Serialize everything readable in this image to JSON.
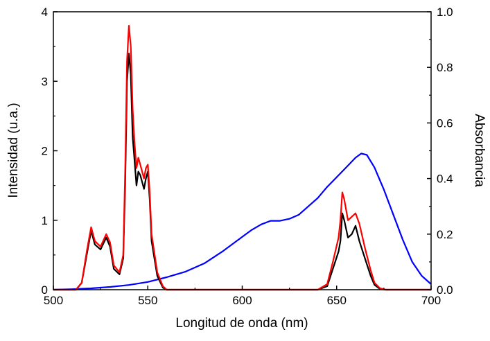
{
  "chart_data": {
    "type": "line",
    "title": "",
    "xlabel": "Longitud de onda (nm)",
    "ylabel_left": "Intensidad (u.a.)",
    "ylabel_right": "Absorbancia",
    "xlim": [
      500,
      700
    ],
    "ylim_left": [
      0,
      4
    ],
    "ylim_right": [
      0,
      1.0
    ],
    "x_ticks": [
      500,
      550,
      600,
      650,
      700
    ],
    "y_left_ticks": [
      0,
      1,
      2,
      3,
      4
    ],
    "y_right_ticks": [
      "0.0",
      "0.2",
      "0.4",
      "0.6",
      "0.8",
      "1.0"
    ],
    "grid": false,
    "legend": "none",
    "series": [
      {
        "axis": "right",
        "color": "#0000ff",
        "points": [
          [
            500,
            0.0
          ],
          [
            510,
            0.002
          ],
          [
            520,
            0.005
          ],
          [
            530,
            0.01
          ],
          [
            540,
            0.017
          ],
          [
            550,
            0.028
          ],
          [
            560,
            0.045
          ],
          [
            570,
            0.065
          ],
          [
            580,
            0.095
          ],
          [
            590,
            0.14
          ],
          [
            600,
            0.19
          ],
          [
            605,
            0.215
          ],
          [
            610,
            0.235
          ],
          [
            615,
            0.248
          ],
          [
            620,
            0.248
          ],
          [
            625,
            0.255
          ],
          [
            630,
            0.27
          ],
          [
            635,
            0.3
          ],
          [
            640,
            0.33
          ],
          [
            645,
            0.37
          ],
          [
            650,
            0.405
          ],
          [
            655,
            0.44
          ],
          [
            660,
            0.475
          ],
          [
            663,
            0.49
          ],
          [
            666,
            0.485
          ],
          [
            670,
            0.44
          ],
          [
            675,
            0.36
          ],
          [
            680,
            0.27
          ],
          [
            685,
            0.18
          ],
          [
            690,
            0.1
          ],
          [
            695,
            0.05
          ],
          [
            700,
            0.02
          ]
        ]
      },
      {
        "axis": "left",
        "color": "#000000",
        "points": [
          [
            500,
            0
          ],
          [
            512,
            0
          ],
          [
            515,
            0.1
          ],
          [
            518,
            0.55
          ],
          [
            520,
            0.85
          ],
          [
            522,
            0.65
          ],
          [
            525,
            0.58
          ],
          [
            528,
            0.75
          ],
          [
            530,
            0.62
          ],
          [
            532,
            0.3
          ],
          [
            535,
            0.22
          ],
          [
            537,
            0.45
          ],
          [
            538,
            1.5
          ],
          [
            539,
            3.0
          ],
          [
            540,
            3.4
          ],
          [
            541,
            3.1
          ],
          [
            542,
            2.2
          ],
          [
            543,
            1.85
          ],
          [
            544,
            1.5
          ],
          [
            545,
            1.7
          ],
          [
            546,
            1.65
          ],
          [
            547,
            1.55
          ],
          [
            548,
            1.45
          ],
          [
            549,
            1.6
          ],
          [
            550,
            1.7
          ],
          [
            551,
            1.3
          ],
          [
            552,
            0.7
          ],
          [
            555,
            0.2
          ],
          [
            558,
            0.03
          ],
          [
            560,
            0
          ],
          [
            640,
            0
          ],
          [
            645,
            0.05
          ],
          [
            648,
            0.3
          ],
          [
            651,
            0.55
          ],
          [
            652,
            0.7
          ],
          [
            653,
            1.1
          ],
          [
            654,
            1.0
          ],
          [
            656,
            0.75
          ],
          [
            658,
            0.8
          ],
          [
            660,
            0.92
          ],
          [
            662,
            0.7
          ],
          [
            665,
            0.45
          ],
          [
            668,
            0.2
          ],
          [
            670,
            0.07
          ],
          [
            673,
            0.01
          ],
          [
            676,
            0
          ],
          [
            700,
            0
          ]
        ]
      },
      {
        "axis": "left",
        "color": "#ff0000",
        "points": [
          [
            500,
            0
          ],
          [
            512,
            0
          ],
          [
            515,
            0.1
          ],
          [
            518,
            0.6
          ],
          [
            520,
            0.9
          ],
          [
            522,
            0.7
          ],
          [
            525,
            0.62
          ],
          [
            528,
            0.8
          ],
          [
            530,
            0.68
          ],
          [
            532,
            0.35
          ],
          [
            535,
            0.25
          ],
          [
            537,
            0.5
          ],
          [
            538,
            1.7
          ],
          [
            539,
            3.3
          ],
          [
            540,
            3.8
          ],
          [
            541,
            3.5
          ],
          [
            542,
            2.6
          ],
          [
            543,
            2.1
          ],
          [
            544,
            1.75
          ],
          [
            545,
            1.9
          ],
          [
            546,
            1.8
          ],
          [
            547,
            1.7
          ],
          [
            548,
            1.6
          ],
          [
            549,
            1.75
          ],
          [
            550,
            1.8
          ],
          [
            551,
            1.4
          ],
          [
            552,
            0.8
          ],
          [
            555,
            0.25
          ],
          [
            558,
            0.05
          ],
          [
            560,
            0
          ],
          [
            640,
            0
          ],
          [
            645,
            0.08
          ],
          [
            648,
            0.4
          ],
          [
            651,
            0.75
          ],
          [
            652,
            1.0
          ],
          [
            653,
            1.4
          ],
          [
            654,
            1.3
          ],
          [
            656,
            1.0
          ],
          [
            658,
            1.05
          ],
          [
            660,
            1.1
          ],
          [
            662,
            0.95
          ],
          [
            665,
            0.6
          ],
          [
            668,
            0.28
          ],
          [
            670,
            0.1
          ],
          [
            673,
            0.02
          ],
          [
            676,
            0
          ],
          [
            700,
            0
          ]
        ]
      }
    ]
  }
}
